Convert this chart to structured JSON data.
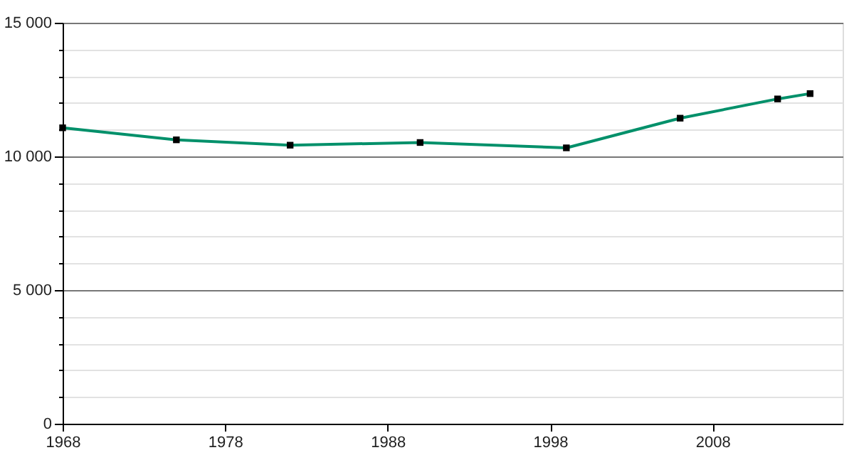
{
  "chart_data": {
    "type": "line",
    "marker": "square",
    "line_style": "solid",
    "grid": "y",
    "x": [
      1968,
      1975,
      1982,
      1990,
      1999,
      2006,
      2012,
      2014
    ],
    "series": [
      {
        "color": "#00906a",
        "values": [
          11070,
          10620,
          10420,
          10520,
          10320,
          11430,
          12150,
          12350
        ]
      }
    ],
    "xlim": [
      1968,
      2016
    ],
    "xticks": [
      {
        "value": 1968,
        "label": "1968"
      },
      {
        "value": 1978,
        "label": "1978"
      },
      {
        "value": 1988,
        "label": "1988"
      },
      {
        "value": 1998,
        "label": "1998"
      },
      {
        "value": 2008,
        "label": "2008"
      }
    ],
    "ylim": [
      0,
      15000
    ],
    "yticks": [
      {
        "value": 0,
        "label": "0"
      },
      {
        "value": 1000,
        "label": null
      },
      {
        "value": 2000,
        "label": null
      },
      {
        "value": 3000,
        "label": null
      },
      {
        "value": 4000,
        "label": null
      },
      {
        "value": 5000,
        "label": "5 000"
      },
      {
        "value": 6000,
        "label": null
      },
      {
        "value": 7000,
        "label": null
      },
      {
        "value": 8000,
        "label": null
      },
      {
        "value": 9000,
        "label": null
      },
      {
        "value": 10000,
        "label": "10 000"
      },
      {
        "value": 11000,
        "label": null
      },
      {
        "value": 12000,
        "label": null
      },
      {
        "value": 13000,
        "label": null
      },
      {
        "value": 14000,
        "label": null
      },
      {
        "value": 15000,
        "label": "15 000"
      }
    ]
  }
}
